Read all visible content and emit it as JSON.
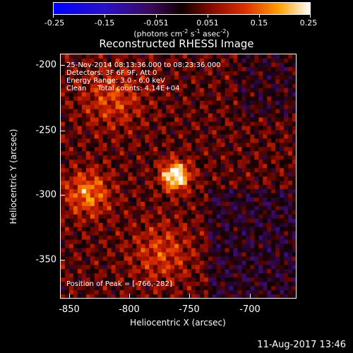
{
  "colorbar": {
    "ticks": [
      "-0.25",
      "-0.15",
      "-0.051",
      "0.051",
      "0.15",
      "0.25"
    ],
    "units_main": "(photons cm",
    "units_exp1": "-2",
    "units_s": " s",
    "units_exp2": "-1",
    "units_asec": " asec",
    "units_exp3": "-2",
    "units_close": ")"
  },
  "title": "Reconstructed RHESSI Image",
  "info": {
    "line1": "25-Nov-2014 08:13:36.000 to 08:23:36.000",
    "line2": "Detectors: 3F 6F 9F, Att 0",
    "line3": "Energy Range: 3.0 - 6.0 keV",
    "line4": "Clean     Total counts: 4.14E+04",
    "peak": "Position of Peak = [-766,-282]"
  },
  "axes": {
    "xlabel": "Heliocentric X (arcsec)",
    "ylabel": "Heliocentric Y (arcsec)",
    "xticks": [
      "-850",
      "-800",
      "-750",
      "-700"
    ],
    "yticks": [
      "-200",
      "-250",
      "-300",
      "-350"
    ]
  },
  "timestamp": "11-Aug-2017 13:46",
  "chart_data": {
    "type": "heatmap",
    "xlim": [
      -860,
      -664
    ],
    "ylim": [
      -382,
      -186
    ],
    "xticks": [
      -850,
      -800,
      -750,
      -700
    ],
    "yticks": [
      -200,
      -250,
      -300,
      -350
    ],
    "color_range": [
      -0.25,
      0.25
    ],
    "peak": [
      -766,
      -282
    ]
  }
}
